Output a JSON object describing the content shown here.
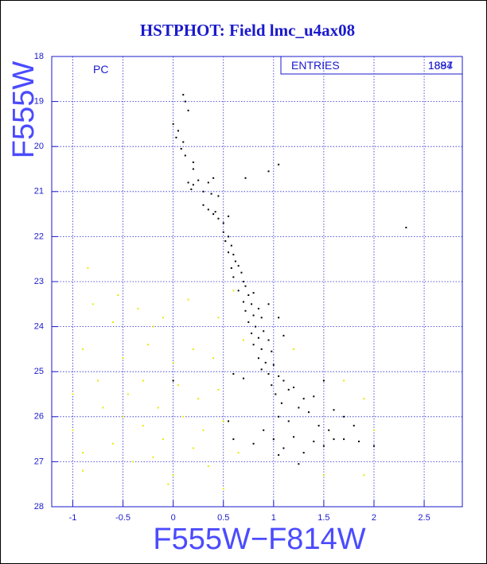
{
  "chart_data": {
    "type": "scatter",
    "title": "HSTPHOT: Field lmc_u4ax08",
    "xlabel": "F555W−F814W",
    "ylabel": "F555W",
    "annotation": "PC",
    "stats": {
      "label": "ENTRIES",
      "values": [
        "1897",
        "1884"
      ]
    },
    "xlim": [
      -1.21,
      2.88
    ],
    "ylim": [
      28,
      18
    ],
    "xticks": [
      -1,
      -0.5,
      0,
      0.5,
      1,
      1.5,
      2,
      2.5
    ],
    "yticks": [
      18,
      19,
      20,
      21,
      22,
      23,
      24,
      25,
      26,
      27,
      28
    ],
    "grid": true,
    "series": [
      {
        "color": "#000000",
        "x": [
          0.1,
          0.12,
          0.15,
          0.0,
          0.05,
          0.03,
          0.1,
          0.08,
          0.12,
          0.2,
          0.2,
          0.15,
          0.2,
          0.25,
          0.18,
          0.3,
          0.35,
          0.4,
          0.38,
          0.45,
          0.72,
          0.95,
          1.05,
          0.3,
          0.35,
          0.4,
          0.45,
          0.5,
          0.42,
          0.55,
          0.5,
          0.55,
          0.52,
          0.58,
          2.32,
          0.55,
          0.6,
          0.62,
          0.58,
          0.65,
          0.68,
          0.6,
          0.7,
          0.72,
          0.65,
          0.75,
          0.8,
          0.7,
          0.78,
          0.85,
          0.72,
          0.8,
          0.88,
          0.75,
          0.82,
          0.9,
          0.78,
          0.85,
          0.95,
          0.8,
          0.88,
          0.98,
          0.85,
          0.92,
          1.0,
          0.88,
          0.95,
          1.05,
          0.7,
          0.6,
          1.1,
          0.98,
          1.15,
          1.2,
          1.02,
          1.3,
          1.4,
          1.5,
          1.08,
          1.25,
          1.35,
          1.6,
          1.7,
          1.05,
          1.15,
          1.45,
          1.55,
          1.8,
          1.0,
          1.2,
          1.4,
          1.6,
          1.85,
          1.1,
          1.3,
          1.5,
          1.7,
          2.0,
          1.05,
          1.25,
          0.55,
          0.6,
          0.8,
          0.9,
          0.0,
          1.1,
          1.05,
          0.95
        ],
        "y": [
          18.85,
          19.0,
          19.2,
          19.5,
          19.65,
          19.8,
          19.9,
          20.05,
          20.2,
          20.35,
          20.5,
          20.8,
          20.85,
          20.75,
          20.95,
          21.0,
          20.8,
          20.7,
          21.05,
          21.1,
          20.7,
          20.55,
          20.4,
          21.3,
          21.4,
          21.5,
          21.6,
          21.7,
          21.45,
          21.55,
          21.9,
          22.0,
          22.1,
          22.2,
          21.8,
          22.35,
          22.4,
          22.55,
          22.7,
          22.65,
          22.8,
          22.9,
          23.0,
          23.1,
          23.2,
          23.3,
          23.25,
          23.45,
          23.5,
          23.6,
          23.65,
          23.75,
          23.8,
          23.9,
          24.0,
          24.1,
          24.15,
          24.25,
          24.3,
          24.4,
          24.5,
          24.55,
          24.7,
          24.8,
          24.85,
          24.95,
          25.05,
          25.1,
          25.15,
          25.05,
          25.2,
          25.3,
          25.4,
          25.35,
          25.5,
          25.6,
          25.55,
          25.2,
          25.7,
          25.8,
          25.9,
          25.85,
          26.0,
          26.0,
          26.1,
          26.2,
          26.3,
          26.2,
          26.5,
          26.45,
          26.55,
          26.5,
          26.55,
          26.7,
          26.8,
          26.65,
          26.5,
          26.65,
          26.85,
          27.05,
          26.1,
          26.5,
          26.6,
          26.3,
          25.2,
          24.2,
          23.8,
          23.5
        ]
      },
      {
        "color": "#e8e800",
        "x": [
          -0.85,
          -0.8,
          -0.9,
          -1.0,
          -0.6,
          -0.5,
          -0.3,
          -0.2,
          0.0,
          0.2,
          0.4,
          -0.7,
          -0.5,
          -0.3,
          -0.1,
          0.1,
          0.3,
          0.5,
          -0.9,
          -0.6,
          -0.4,
          -0.2,
          0.0,
          0.2,
          0.35,
          -1.0,
          -0.75,
          -0.45,
          -0.15,
          0.05,
          0.25,
          0.45,
          -0.55,
          -0.35,
          -0.1,
          0.45,
          0.6,
          0.7,
          1.2,
          1.7,
          1.9,
          2.0,
          1.9,
          1.5,
          -0.05,
          0.5,
          -0.9,
          0.65,
          0.15,
          -0.25
        ],
        "y": [
          22.7,
          23.5,
          24.5,
          25.5,
          23.9,
          24.7,
          25.2,
          24.0,
          24.8,
          24.5,
          24.7,
          25.8,
          26.0,
          26.2,
          26.5,
          26.0,
          26.3,
          26.1,
          26.8,
          26.6,
          27.0,
          26.9,
          27.3,
          26.7,
          27.1,
          26.3,
          25.2,
          25.5,
          25.8,
          25.3,
          25.6,
          25.4,
          23.3,
          23.6,
          23.8,
          23.8,
          23.2,
          24.3,
          24.5,
          25.2,
          25.6,
          26.3,
          27.3,
          27.3,
          27.5,
          27.6,
          27.2,
          26.8,
          23.4,
          24.4
        ]
      }
    ]
  }
}
